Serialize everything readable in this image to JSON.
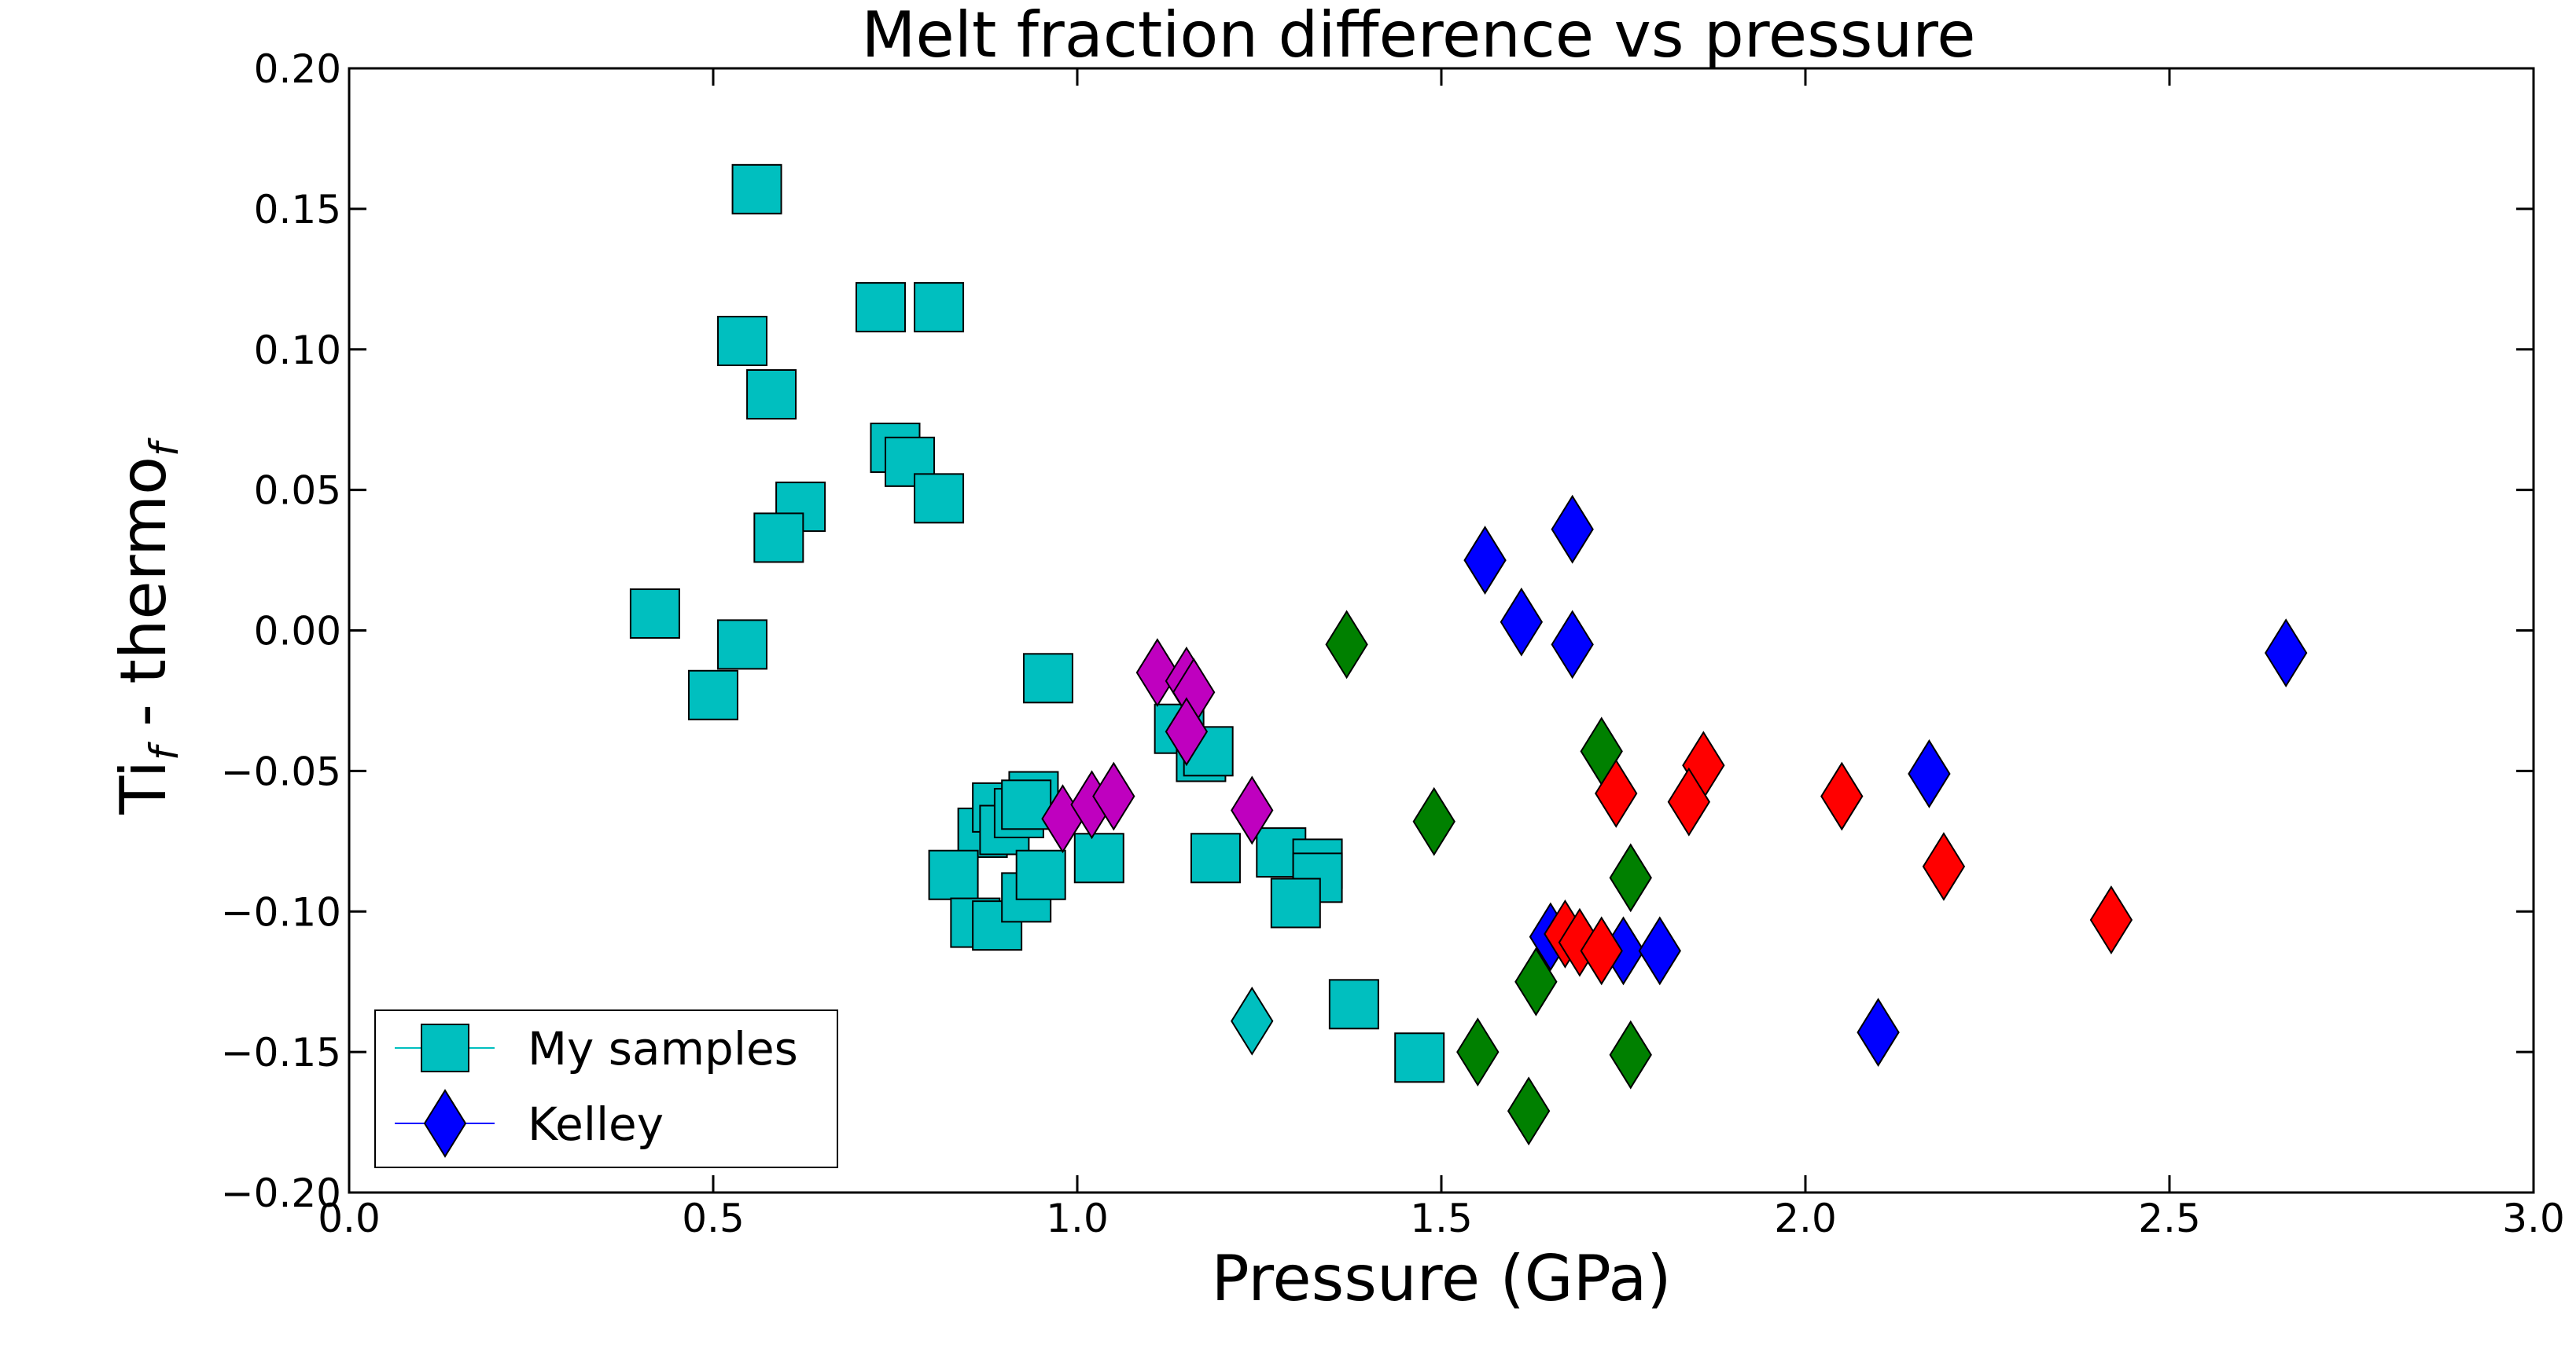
{
  "chart_data": {
    "type": "scatter",
    "title": "Melt fraction difference vs pressure",
    "xlabel": "Pressure (GPa)",
    "ylabel": {
      "base": "Ti",
      "sub1": "f",
      "mid": " - thermo",
      "sub2": "f"
    },
    "xlim": [
      0.0,
      3.0
    ],
    "ylim": [
      -0.2,
      0.2
    ],
    "xticks": [
      0.0,
      0.5,
      1.0,
      1.5,
      2.0,
      2.5,
      3.0
    ],
    "xtick_labels": [
      "0.0",
      "0.5",
      "1.0",
      "1.5",
      "2.0",
      "2.5",
      "3.0"
    ],
    "yticks": [
      -0.2,
      -0.15,
      -0.1,
      -0.05,
      0.0,
      0.05,
      0.1,
      0.15,
      0.2
    ],
    "ytick_labels": [
      "−0.20",
      "−0.15",
      "−0.10",
      "−0.05",
      "0.00",
      "0.05",
      "0.10",
      "0.15",
      "0.20"
    ],
    "grid": false,
    "legend": {
      "position": "lower-left",
      "entries": [
        {
          "label": "My samples",
          "marker": "square",
          "color": "#00bfbf"
        },
        {
          "label": "Kelley",
          "marker": "diamond",
          "color": "#0000ff"
        }
      ]
    },
    "series": [
      {
        "name": "My samples",
        "marker": "square",
        "color": "#00bfbf",
        "points": [
          [
            0.56,
            0.157
          ],
          [
            0.54,
            0.103
          ],
          [
            0.58,
            0.084
          ],
          [
            0.73,
            0.115
          ],
          [
            0.81,
            0.115
          ],
          [
            0.75,
            0.065
          ],
          [
            0.77,
            0.06
          ],
          [
            0.81,
            0.047
          ],
          [
            0.62,
            0.044
          ],
          [
            0.59,
            0.033
          ],
          [
            0.42,
            0.006
          ],
          [
            0.54,
            -0.005
          ],
          [
            0.5,
            -0.023
          ],
          [
            0.96,
            -0.017
          ],
          [
            1.14,
            -0.035
          ],
          [
            1.17,
            -0.045
          ],
          [
            1.18,
            -0.043
          ],
          [
            0.87,
            -0.072
          ],
          [
            0.89,
            -0.063
          ],
          [
            0.9,
            -0.071
          ],
          [
            0.94,
            -0.059
          ],
          [
            0.92,
            -0.065
          ],
          [
            0.93,
            -0.062
          ],
          [
            0.83,
            -0.087
          ],
          [
            0.86,
            -0.104
          ],
          [
            0.89,
            -0.105
          ],
          [
            0.93,
            -0.095
          ],
          [
            0.95,
            -0.087
          ],
          [
            1.03,
            -0.081
          ],
          [
            1.19,
            -0.081
          ],
          [
            1.28,
            -0.079
          ],
          [
            1.33,
            -0.083
          ],
          [
            1.33,
            -0.088
          ],
          [
            1.3,
            -0.097
          ],
          [
            1.38,
            -0.133
          ],
          [
            1.47,
            -0.152
          ]
        ]
      },
      {
        "marker": "diamond",
        "color": "#00bfbf",
        "points": [
          [
            1.24,
            -0.139
          ]
        ]
      },
      {
        "marker": "diamond",
        "color": "#bf00bf",
        "points": [
          [
            1.11,
            -0.015
          ],
          [
            1.15,
            -0.018
          ],
          [
            1.16,
            -0.022
          ],
          [
            1.15,
            -0.036
          ],
          [
            0.98,
            -0.067
          ],
          [
            1.02,
            -0.062
          ],
          [
            1.05,
            -0.059
          ],
          [
            1.24,
            -0.064
          ]
        ]
      },
      {
        "marker": "diamond",
        "color": "#008000",
        "points": [
          [
            1.37,
            -0.005
          ],
          [
            1.49,
            -0.068
          ],
          [
            1.72,
            -0.043
          ],
          [
            1.76,
            -0.088
          ],
          [
            1.63,
            -0.125
          ],
          [
            1.55,
            -0.15
          ],
          [
            1.76,
            -0.151
          ],
          [
            1.62,
            -0.171
          ]
        ]
      },
      {
        "name": "Kelley",
        "marker": "diamond",
        "color": "#0000ff",
        "points": [
          [
            1.56,
            0.025
          ],
          [
            1.68,
            0.036
          ],
          [
            1.61,
            0.003
          ],
          [
            1.68,
            -0.005
          ],
          [
            2.66,
            -0.008
          ],
          [
            2.17,
            -0.051
          ],
          [
            1.65,
            -0.109
          ],
          [
            1.75,
            -0.114
          ],
          [
            1.8,
            -0.114
          ],
          [
            2.1,
            -0.143
          ]
        ]
      },
      {
        "marker": "diamond",
        "color": "#ff0000",
        "points": [
          [
            1.74,
            -0.058
          ],
          [
            1.86,
            -0.048
          ],
          [
            1.84,
            -0.061
          ],
          [
            2.05,
            -0.059
          ],
          [
            2.19,
            -0.084
          ],
          [
            2.42,
            -0.103
          ],
          [
            1.67,
            -0.108
          ],
          [
            1.69,
            -0.111
          ],
          [
            1.72,
            -0.114
          ]
        ]
      }
    ]
  }
}
